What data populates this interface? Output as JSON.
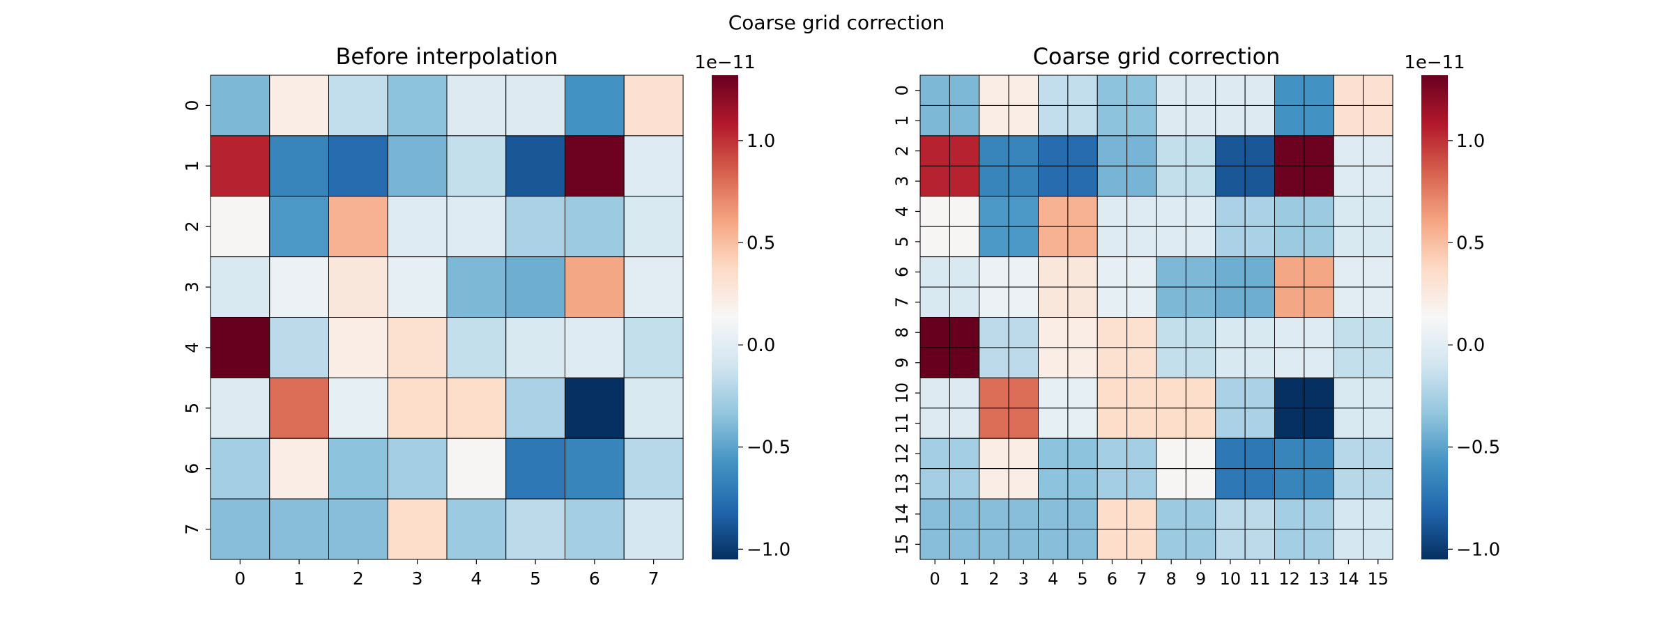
{
  "figure": {
    "suptitle": "Coarse grid correction"
  },
  "chart_data": [
    {
      "type": "heatmap",
      "title": "Before interpolation",
      "xlabel": "",
      "ylabel": "",
      "x_ticks": [
        "0",
        "1",
        "2",
        "3",
        "4",
        "5",
        "6",
        "7"
      ],
      "y_ticks": [
        "0",
        "1",
        "2",
        "3",
        "4",
        "5",
        "6",
        "7"
      ],
      "scale_note": "1e−11",
      "colormap": "RdBu_r",
      "vmin": -1.05,
      "vmax": 1.32,
      "colorbar_ticks": [
        {
          "value": 1.0,
          "label": "1.0"
        },
        {
          "value": 0.5,
          "label": "0.5"
        },
        {
          "value": 0.0,
          "label": "0.0"
        },
        {
          "value": -0.5,
          "label": "−0.5"
        },
        {
          "value": -1.0,
          "label": "−1.0"
        }
      ],
      "grid": true,
      "values": [
        [
          -0.4,
          0.22,
          -0.16,
          -0.35,
          -0.03,
          -0.03,
          -0.58,
          0.32
        ],
        [
          1.05,
          -0.65,
          -0.78,
          -0.42,
          -0.15,
          -0.88,
          1.3,
          -0.02
        ],
        [
          0.15,
          -0.55,
          0.55,
          -0.02,
          -0.02,
          -0.25,
          -0.3,
          -0.05
        ],
        [
          -0.05,
          0.06,
          0.27,
          0.03,
          -0.4,
          -0.45,
          0.6,
          0.0
        ],
        [
          1.32,
          -0.18,
          0.22,
          0.33,
          -0.15,
          -0.05,
          -0.02,
          -0.15
        ],
        [
          -0.03,
          0.8,
          0.03,
          0.35,
          0.35,
          -0.25,
          -1.05,
          -0.05
        ],
        [
          -0.27,
          0.22,
          -0.35,
          -0.27,
          0.15,
          -0.72,
          -0.65,
          -0.2
        ],
        [
          -0.37,
          -0.37,
          -0.37,
          0.35,
          -0.3,
          -0.18,
          -0.27,
          -0.08
        ]
      ]
    },
    {
      "type": "heatmap",
      "title": "Coarse grid correction",
      "xlabel": "",
      "ylabel": "",
      "x_ticks": [
        "0",
        "1",
        "2",
        "3",
        "4",
        "5",
        "6",
        "7",
        "8",
        "9",
        "10",
        "11",
        "12",
        "13",
        "14",
        "15"
      ],
      "y_ticks": [
        "0",
        "1",
        "2",
        "3",
        "4",
        "5",
        "6",
        "7",
        "8",
        "9",
        "10",
        "11",
        "12",
        "13",
        "14",
        "15"
      ],
      "scale_note": "1e−11",
      "colormap": "RdBu_r",
      "vmin": -1.05,
      "vmax": 1.32,
      "colorbar_ticks": [
        {
          "value": 1.0,
          "label": "1.0"
        },
        {
          "value": 0.5,
          "label": "0.5"
        },
        {
          "value": 0.0,
          "label": "0.0"
        },
        {
          "value": -0.5,
          "label": "−0.5"
        },
        {
          "value": -1.0,
          "label": "−1.0"
        }
      ],
      "grid": true,
      "upsample": 2,
      "source_index": 0
    }
  ]
}
